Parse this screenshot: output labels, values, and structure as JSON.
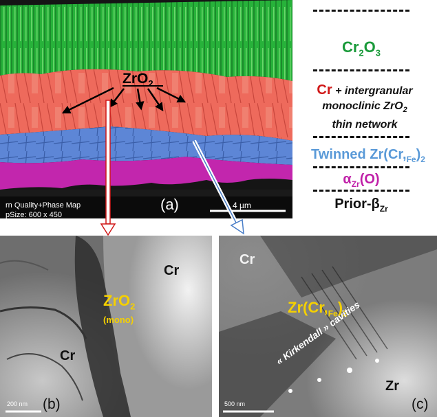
{
  "panel_a": {
    "label": "(a)",
    "zro2_label": "ZrO",
    "zro2_sub": "2",
    "map_caption_line1": "rn Quality+Phase Map",
    "map_caption_line2": "pSize: 600 x 450",
    "scale_label": "4 µm"
  },
  "legend": {
    "cr2o3_a": "Cr",
    "cr2o3_sub1": "2",
    "cr2o3_b": "O",
    "cr2o3_sub2": "3",
    "cr_label": "Cr",
    "cr_line1_rest": " + intergranular",
    "cr_line2": "monoclinic ZrO",
    "cr_line2_sub": "2",
    "cr_line3": "thin network",
    "twinned_a": "Twinned Zr(Cr,",
    "twinned_fe": "Fe",
    "twinned_b": ")",
    "twinned_sub": "2",
    "alpha_a": "α",
    "alpha_sub": "Zr",
    "alpha_b": "(O)",
    "prior_a": "Prior-β",
    "prior_sub": "Zr"
  },
  "panel_b": {
    "label": "(b)",
    "cr_top": "Cr",
    "zro2": "ZrO",
    "zro2_sub": "2",
    "mono": "(mono)",
    "cr_bottom": "Cr",
    "scale_label": "200 nm"
  },
  "panel_c": {
    "label": "(c)",
    "cr": "Cr",
    "phase_a": "Zr(Cr,",
    "phase_fe": "Fe",
    "phase_b": ")",
    "phase_sub": "2",
    "cavities": "« Kirkendall » cavities",
    "zr": "Zr",
    "scale_label": "500 nm"
  },
  "colors": {
    "cr2o3_green": "#1a9a3a",
    "cr_red": "#d01818",
    "twinned_blue": "#5a9ad8",
    "alpha_magenta": "#c020a8",
    "tem_label_yellow": "#f5d000"
  }
}
